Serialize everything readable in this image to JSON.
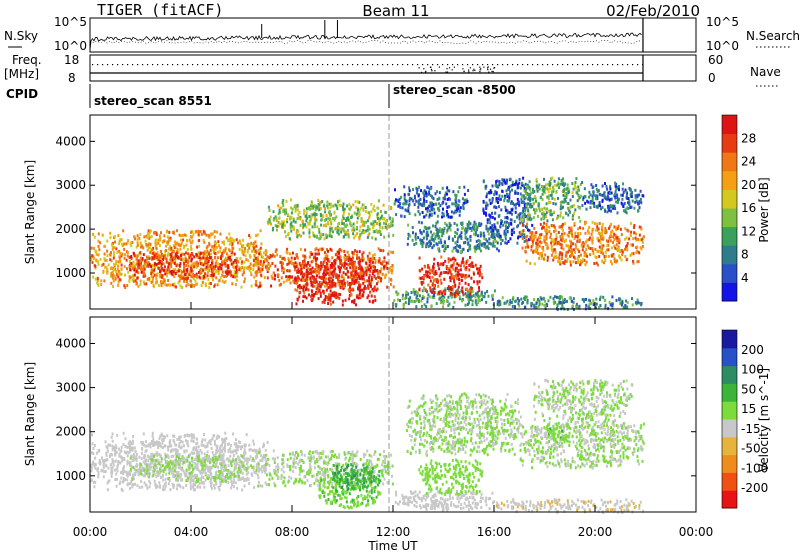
{
  "header": {
    "station": "TIGER (fitACF)",
    "beam": "Beam 11",
    "date": "02/Feb/2010"
  },
  "summary_panels": {
    "nsky_label": "N.Sky",
    "nsky_ticks": [
      "10^5",
      "10^0"
    ],
    "nsearch_label": "N.Search",
    "freq_label_1": "Freq.",
    "freq_label_2": "[MHz]",
    "freq_ticks": [
      "18",
      "8"
    ],
    "nave_label": "Nave",
    "nave_ticks": [
      "60",
      "0"
    ],
    "cpid_label": "CPID",
    "cpid_segments": [
      {
        "name": "stereo_scan 8551",
        "start_hour": 0
      },
      {
        "name": "stereo_scan -8500",
        "start_hour": 12
      }
    ]
  },
  "chart_data": [
    {
      "type": "heatmap",
      "title": "",
      "xlabel": "",
      "ylabel": "Slant Range [km]",
      "x_range_hours": [
        0,
        24
      ],
      "y_range_km": [
        180,
        4600
      ],
      "data_end_hour": 21.9,
      "y_ticks": [
        1000,
        2000,
        3000,
        4000
      ],
      "colorbar": {
        "label": "Power [dB]",
        "ticks": [
          "28",
          "24",
          "20",
          "16",
          "12",
          "8",
          "4"
        ],
        "range": [
          0,
          30
        ],
        "colors": [
          "#1414e6",
          "#2a4fc8",
          "#2f7d8c",
          "#3aa05a",
          "#7fc040",
          "#d2c81e",
          "#f5a014",
          "#f07814",
          "#e63c14",
          "#dc1414"
        ]
      },
      "regions": [
        {
          "x": [
            0.0,
            7.0
          ],
          "y": [
            700,
            2000
          ],
          "level": 20
        },
        {
          "x": [
            1.5,
            6.0
          ],
          "y": [
            900,
            1500
          ],
          "level": 26
        },
        {
          "x": [
            6.5,
            12.0
          ],
          "y": [
            700,
            1600
          ],
          "level": 24
        },
        {
          "x": [
            8.0,
            11.5
          ],
          "y": [
            300,
            1400
          ],
          "level": 28
        },
        {
          "x": [
            7.0,
            12.0
          ],
          "y": [
            1800,
            2700
          ],
          "level": 14
        },
        {
          "x": [
            12.0,
            16.0
          ],
          "y": [
            250,
            700
          ],
          "level": 10
        },
        {
          "x": [
            13.0,
            15.5
          ],
          "y": [
            500,
            1400
          ],
          "level": 27
        },
        {
          "x": [
            12.5,
            16.5
          ],
          "y": [
            1500,
            2200
          ],
          "level": 8
        },
        {
          "x": [
            12.0,
            15.0
          ],
          "y": [
            2300,
            3000
          ],
          "level": 6
        },
        {
          "x": [
            15.5,
            17.5
          ],
          "y": [
            1700,
            3200
          ],
          "level": 5
        },
        {
          "x": [
            16.0,
            21.9
          ],
          "y": [
            200,
            500
          ],
          "level": 9
        },
        {
          "x": [
            17.0,
            21.9
          ],
          "y": [
            1200,
            2200
          ],
          "level": 22
        },
        {
          "x": [
            17.0,
            19.5
          ],
          "y": [
            2200,
            3200
          ],
          "level": 12
        },
        {
          "x": [
            19.5,
            21.9
          ],
          "y": [
            2400,
            3100
          ],
          "level": 6
        }
      ]
    },
    {
      "type": "heatmap",
      "title": "",
      "xlabel": "Time UT",
      "ylabel": "Slant Range [km]",
      "x_range_hours": [
        0,
        24
      ],
      "x_tick_labels": [
        "00:00",
        "04:00",
        "08:00",
        "12:00",
        "16:00",
        "20:00",
        "00:00"
      ],
      "y_range_km": [
        180,
        4600
      ],
      "data_end_hour": 21.9,
      "y_ticks": [
        1000,
        2000,
        3000,
        4000
      ],
      "colorbar": {
        "label": "Velocity [m s^-1]",
        "ticks": [
          "200",
          "100",
          "50",
          "15",
          "-15",
          "-50",
          "-100",
          "-200"
        ],
        "range": [
          -250,
          250
        ],
        "colors": [
          "#e61414",
          "#f05014",
          "#f08c1e",
          "#e6b43c",
          "#c8c8c8",
          "#7cdc3c",
          "#3cb43c",
          "#2d8c64",
          "#2850c8",
          "#1a1aa0"
        ]
      },
      "regions": [
        {
          "x": [
            0.0,
            7.0
          ],
          "y": [
            700,
            2000
          ],
          "level": -20
        },
        {
          "x": [
            1.5,
            6.5
          ],
          "y": [
            900,
            1500
          ],
          "level": 0
        },
        {
          "x": [
            6.5,
            12.0
          ],
          "y": [
            800,
            1600
          ],
          "level": 0
        },
        {
          "x": [
            9.0,
            11.5
          ],
          "y": [
            300,
            1000
          ],
          "level": 40
        },
        {
          "x": [
            9.5,
            11.5
          ],
          "y": [
            700,
            1300
          ],
          "level": 90
        },
        {
          "x": [
            12.0,
            16.0
          ],
          "y": [
            250,
            700
          ],
          "level": -30
        },
        {
          "x": [
            13.0,
            15.5
          ],
          "y": [
            600,
            1400
          ],
          "level": 30
        },
        {
          "x": [
            12.5,
            17.0
          ],
          "y": [
            1500,
            2900
          ],
          "level": 5
        },
        {
          "x": [
            16.0,
            21.9
          ],
          "y": [
            200,
            500
          ],
          "level": -40
        },
        {
          "x": [
            17.0,
            21.9
          ],
          "y": [
            1200,
            2400
          ],
          "level": 0
        },
        {
          "x": [
            17.5,
            21.5
          ],
          "y": [
            2400,
            3200
          ],
          "level": 0
        },
        {
          "x": [
            18.0,
            19.0
          ],
          "y": [
            1800,
            2200
          ],
          "level": 40
        }
      ]
    }
  ]
}
